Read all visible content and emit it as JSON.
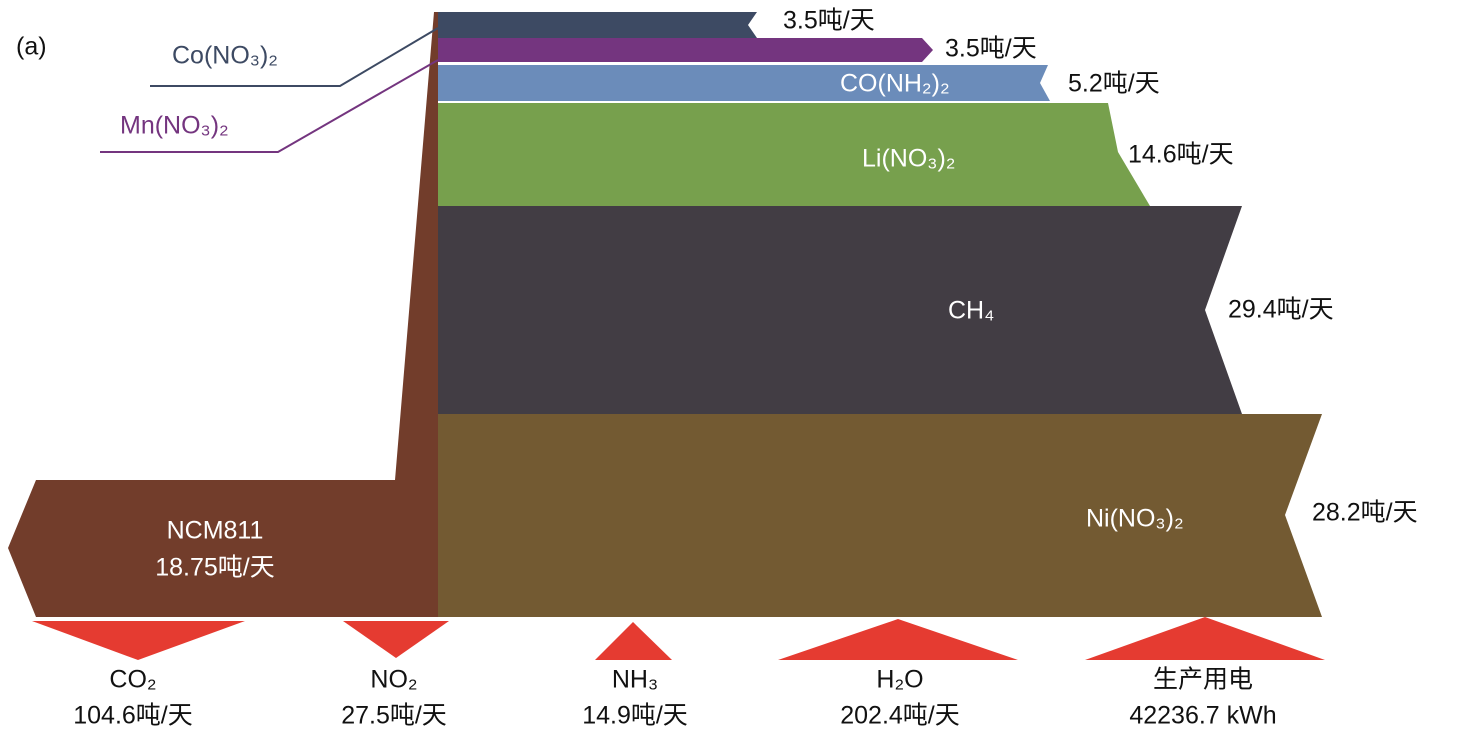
{
  "panel_label": "(a)",
  "inputs": [
    {
      "name": "Co(NO₃)₂",
      "amount": "3.5吨/天"
    },
    {
      "name": "Mn(NO₃)₂",
      "amount": "3.5吨/天"
    },
    {
      "name": "CO(NH₂)₂",
      "amount": "5.2吨/天"
    },
    {
      "name": "Li(NO₃)₂",
      "amount": "14.6吨/天"
    },
    {
      "name": "CH₄",
      "amount": "29.4吨/天"
    },
    {
      "name": "Ni(NO₃)₂",
      "amount": "28.2吨/天"
    }
  ],
  "product": {
    "name": "NCM811",
    "amount": "18.75吨/天"
  },
  "streams": [
    {
      "name": "CO₂",
      "amount": "104.6吨/天"
    },
    {
      "name": "NO₂",
      "amount": "27.5吨/天"
    },
    {
      "name": "NH₃",
      "amount": "14.9吨/天"
    },
    {
      "name": "H₂O",
      "amount": "202.4吨/天"
    },
    {
      "name": "生产用电",
      "amount": "42236.7 kWh"
    }
  ]
}
